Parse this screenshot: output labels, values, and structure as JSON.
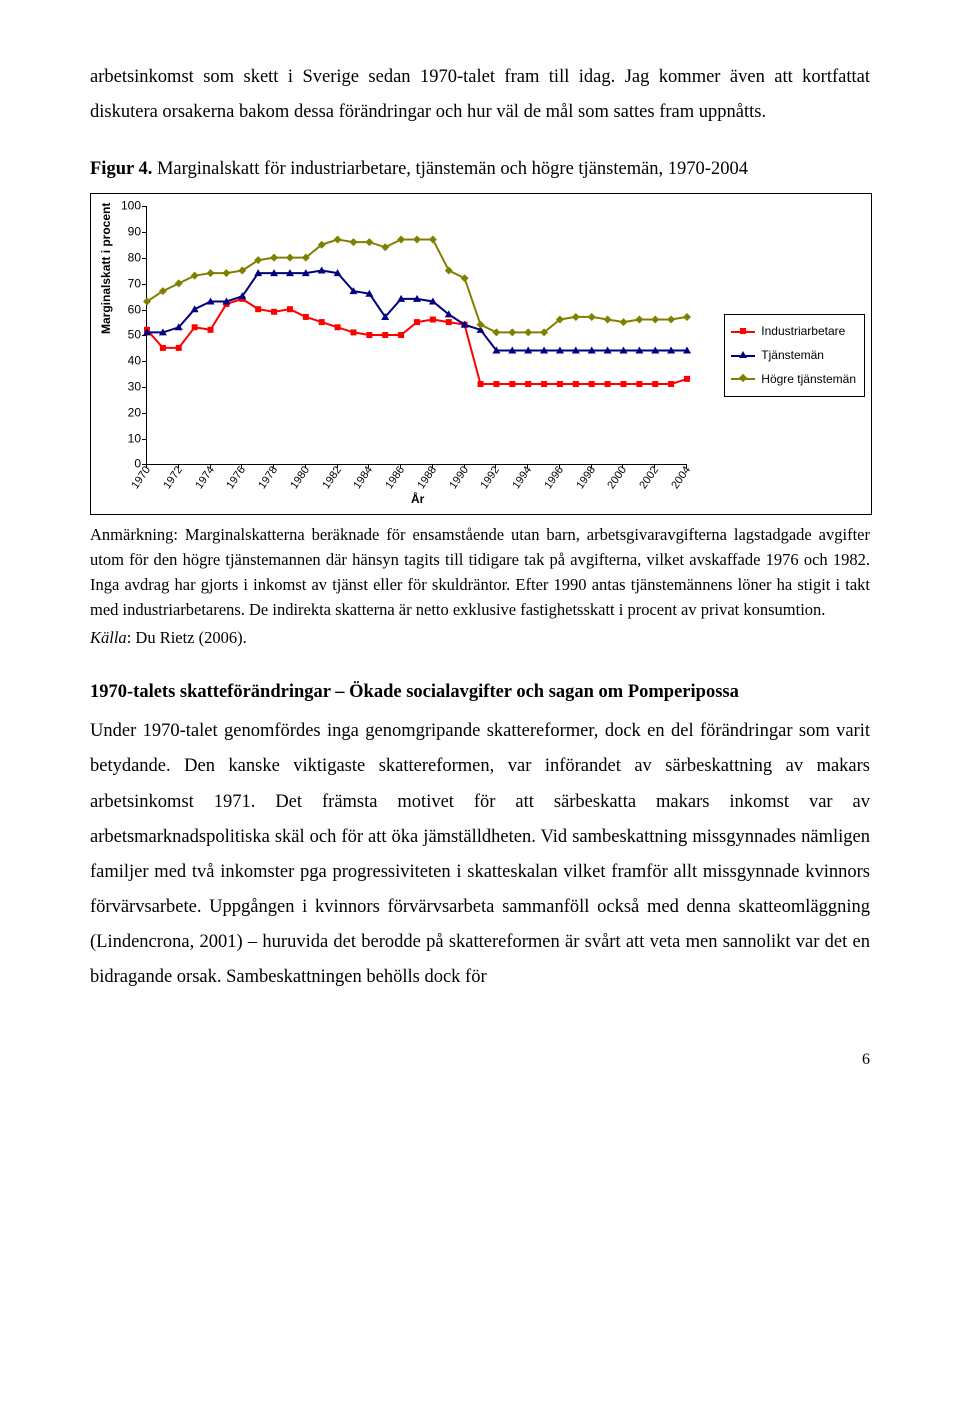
{
  "para_top": "arbetsinkomst som skett i Sverige sedan 1970-talet fram till idag. Jag kommer även att kortfattat diskutera orsakerna bakom dessa förändringar och hur väl de mål som sattes fram uppnåtts.",
  "fig_caption_bold": "Figur 4.",
  "fig_caption_rest": " Marginalskatt för industriarbetare, tjänstemän och högre tjänstemän, 1970-2004",
  "chart": {
    "type": "line",
    "ylim": [
      0,
      100
    ],
    "ytick_step": 10,
    "yticks": [
      0,
      10,
      20,
      30,
      40,
      50,
      60,
      70,
      80,
      90,
      100
    ],
    "xticks_step": 2,
    "xlim": [
      1970,
      2004
    ],
    "xticks": [
      1970,
      1972,
      1974,
      1976,
      1978,
      1980,
      1982,
      1984,
      1986,
      1988,
      1990,
      1992,
      1994,
      1996,
      1998,
      2000,
      2002,
      2004
    ],
    "xaxis_title": "År",
    "yaxis_title": "Marginalskatt i procent",
    "background_color": "#ffffff",
    "axis_color": "#000000",
    "legend": {
      "items": [
        {
          "label": "Industriarbetare",
          "color": "#ff0000",
          "marker": "square"
        },
        {
          "label": "Tjänstemän",
          "color": "#000080",
          "marker": "triangle"
        },
        {
          "label": "Högre tjänstemän",
          "color": "#808000",
          "marker": "diamond"
        }
      ]
    },
    "series": [
      {
        "name": "Industriarbetare",
        "color": "#ff0000",
        "marker": "square",
        "line_width": 2,
        "x": [
          1970,
          1971,
          1972,
          1973,
          1974,
          1975,
          1976,
          1977,
          1978,
          1979,
          1980,
          1981,
          1982,
          1983,
          1984,
          1985,
          1986,
          1987,
          1988,
          1989,
          1990,
          1991,
          1992,
          1993,
          1994,
          1995,
          1996,
          1997,
          1998,
          1999,
          2000,
          2001,
          2002,
          2003,
          2004
        ],
        "y": [
          52,
          45,
          45,
          53,
          52,
          62,
          64,
          60,
          59,
          60,
          57,
          55,
          53,
          51,
          50,
          50,
          50,
          55,
          56,
          55,
          54,
          31,
          31,
          31,
          31,
          31,
          31,
          31,
          31,
          31,
          31,
          31,
          31,
          31,
          33
        ]
      },
      {
        "name": "Tjänstemän",
        "color": "#000080",
        "marker": "triangle",
        "line_width": 2,
        "x": [
          1970,
          1971,
          1972,
          1973,
          1974,
          1975,
          1976,
          1977,
          1978,
          1979,
          1980,
          1981,
          1982,
          1983,
          1984,
          1985,
          1986,
          1987,
          1988,
          1989,
          1990,
          1991,
          1992,
          1993,
          1994,
          1995,
          1996,
          1997,
          1998,
          1999,
          2000,
          2001,
          2002,
          2003,
          2004
        ],
        "y": [
          51,
          51,
          53,
          60,
          63,
          63,
          65,
          74,
          74,
          74,
          74,
          75,
          74,
          67,
          66,
          57,
          64,
          64,
          63,
          58,
          54,
          52,
          44,
          44,
          44,
          44,
          44,
          44,
          44,
          44,
          44,
          44,
          44,
          44,
          44
        ]
      },
      {
        "name": "Högre tjänstemän",
        "color": "#808000",
        "marker": "diamond",
        "line_width": 2,
        "x": [
          1970,
          1971,
          1972,
          1973,
          1974,
          1975,
          1976,
          1977,
          1978,
          1979,
          1980,
          1981,
          1982,
          1983,
          1984,
          1985,
          1986,
          1987,
          1988,
          1989,
          1990,
          1991,
          1992,
          1993,
          1994,
          1995,
          1996,
          1997,
          1998,
          1999,
          2000,
          2001,
          2002,
          2003,
          2004
        ],
        "y": [
          63,
          67,
          70,
          73,
          74,
          74,
          75,
          79,
          80,
          80,
          80,
          85,
          87,
          86,
          86,
          84,
          87,
          87,
          87,
          75,
          72,
          54,
          51,
          51,
          51,
          51,
          56,
          57,
          57,
          56,
          55,
          56,
          56,
          56,
          57
        ]
      }
    ]
  },
  "note_text": "Anmärkning: Marginalskatterna beräknade för ensamstående utan barn, arbetsgivaravgifterna lagstadgade avgifter utom för den högre tjänstemannen där hänsyn tagits till tidigare tak på avgifterna, vilket avskaffade 1976 och 1982. Inga avdrag har gjorts i inkomst av tjänst eller för skuldräntor. Efter 1990 antas tjänstemännens löner ha stigit i takt med industriarbetarens. De indirekta skatterna är netto exklusive fastighetsskatt i procent av privat konsumtion.",
  "note_source_label": "Källa",
  "note_source_rest": ": Du Rietz (2006).",
  "section_head": "1970-talets skatteförändringar – Ökade socialavgifter och sagan om Pomperipossa",
  "para_bottom": "Under 1970-talet genomfördes inga genomgripande skattereformer, dock en del förändringar som varit betydande. Den kanske viktigaste skattereformen, var införandet av särbeskattning av makars arbetsinkomst 1971. Det främsta motivet för att särbeskatta makars inkomst var av arbetsmarknadspolitiska skäl och för att öka jämställdheten. Vid sambeskattning missgynnades nämligen familjer med två inkomster pga progressiviteten i skatteskalan vilket framför allt missgynnade kvinnors förvärvsarbete. Uppgången i kvinnors förvärvsarbeta sammanföll också med denna skatteomläggning (Lindencrona, 2001) – huruvida det berodde på skattereformen är svårt att veta men sannolikt var det en bidragande orsak. Sambeskattningen behölls dock för",
  "page_num": "6"
}
